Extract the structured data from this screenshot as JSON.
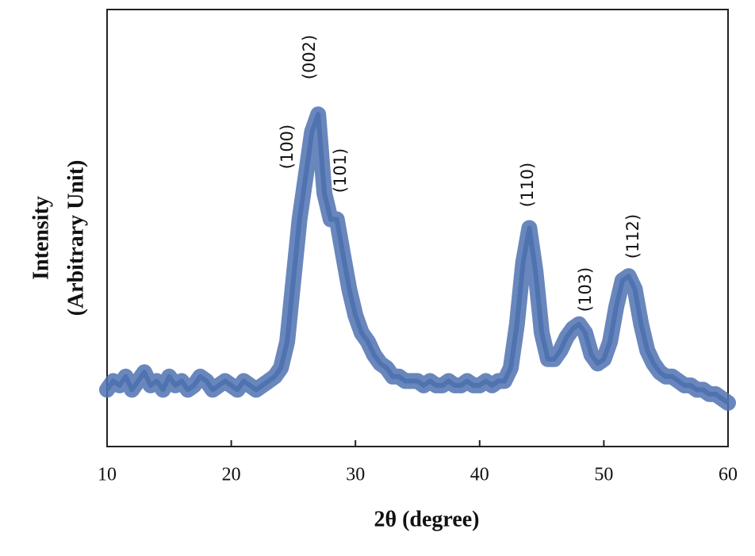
{
  "chart_data": {
    "type": "line",
    "xlabel": "2θ (degree)",
    "ylabel": [
      "Intensity",
      "(Arbitrary Unit)"
    ],
    "x": [
      10,
      10.5,
      11,
      11.5,
      12,
      12.5,
      13,
      13.5,
      14,
      14.5,
      15,
      15.5,
      16,
      16.5,
      17,
      17.5,
      18,
      18.5,
      19,
      19.5,
      20,
      20.5,
      21,
      21.5,
      22,
      22.5,
      23,
      23.5,
      24,
      24.5,
      25,
      25.5,
      26,
      26.5,
      27,
      27.5,
      28,
      28.5,
      29,
      29.5,
      30,
      30.5,
      31,
      31.5,
      32,
      32.5,
      33,
      33.5,
      34,
      34.5,
      35,
      35.5,
      36,
      36.5,
      37,
      37.5,
      38,
      38.5,
      39,
      39.5,
      40,
      40.5,
      41,
      41.5,
      42,
      42.5,
      43,
      43.5,
      44,
      44.5,
      45,
      45.5,
      46,
      46.5,
      47,
      47.5,
      48,
      48.5,
      49,
      49.5,
      50,
      50.5,
      51,
      51.5,
      52,
      52.5,
      53,
      53.5,
      54,
      54.5,
      55,
      55.5,
      56,
      56.5,
      57,
      57.5,
      58,
      58.5,
      59,
      59.5,
      60
    ],
    "values": [
      13,
      15,
      14,
      16,
      13,
      15,
      17,
      14,
      15,
      13,
      16,
      14,
      15,
      13,
      14,
      16,
      15,
      13,
      14,
      15,
      14,
      13,
      15,
      14,
      13,
      14,
      15,
      16,
      18,
      24,
      38,
      52,
      62,
      72,
      76,
      58,
      52,
      52,
      44,
      36,
      30,
      26,
      24,
      21,
      19,
      18,
      16,
      16,
      15,
      15,
      15,
      14,
      15,
      14,
      14,
      15,
      14,
      14,
      15,
      14,
      14,
      15,
      14,
      15,
      15,
      18,
      28,
      42,
      50,
      40,
      26,
      20,
      20,
      22,
      25,
      27,
      28,
      26,
      21,
      19,
      20,
      24,
      32,
      38,
      39,
      36,
      28,
      22,
      19,
      17,
      16,
      16,
      15,
      14,
      14,
      13,
      13,
      12,
      12,
      11,
      10
    ],
    "color": "#4f72b0",
    "xlim": [
      10,
      60
    ],
    "xticks": [
      10,
      20,
      30,
      40,
      50,
      60
    ],
    "ylim": [
      0,
      100
    ],
    "annotations": [
      "(100)",
      "(002)",
      "(101)",
      "(110)",
      "(103)",
      "(112)"
    ]
  }
}
